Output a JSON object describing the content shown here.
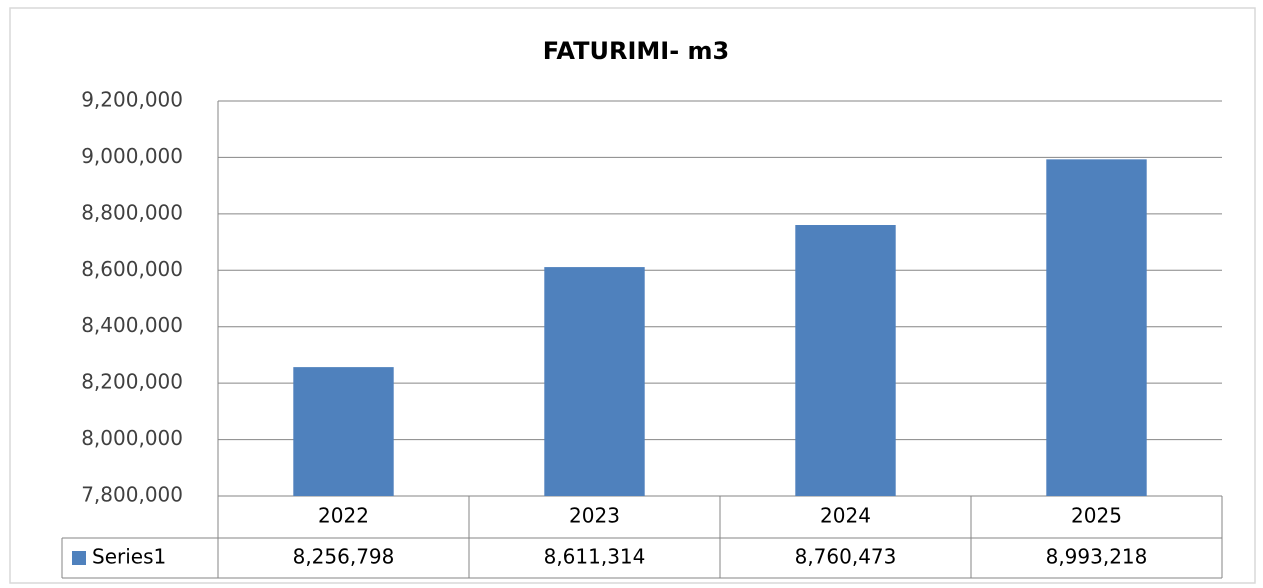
{
  "chart_data": {
    "type": "bar",
    "title": "FATURIMI- m3",
    "categories": [
      "2022",
      "2023",
      "2024",
      "2025"
    ],
    "series": [
      {
        "name": "Series1",
        "color": "#4f81bd",
        "values": [
          8256798,
          8611314,
          8760473,
          8993218
        ],
        "value_labels": [
          "8,256,798",
          "8,611,314",
          "8,760,473",
          "8,993,218"
        ]
      }
    ],
    "ylim": [
      7800000,
      9200000
    ],
    "yticks": [
      {
        "value": 7800000,
        "label": "7,800,000"
      },
      {
        "value": 8000000,
        "label": "8,000,000"
      },
      {
        "value": 8200000,
        "label": "8,200,000"
      },
      {
        "value": 8400000,
        "label": "8,400,000"
      },
      {
        "value": 8600000,
        "label": "8,600,000"
      },
      {
        "value": 8800000,
        "label": "8,800,000"
      },
      {
        "value": 9000000,
        "label": "9,000,000"
      },
      {
        "value": 9200000,
        "label": "9,200,000"
      }
    ],
    "grid": true
  }
}
